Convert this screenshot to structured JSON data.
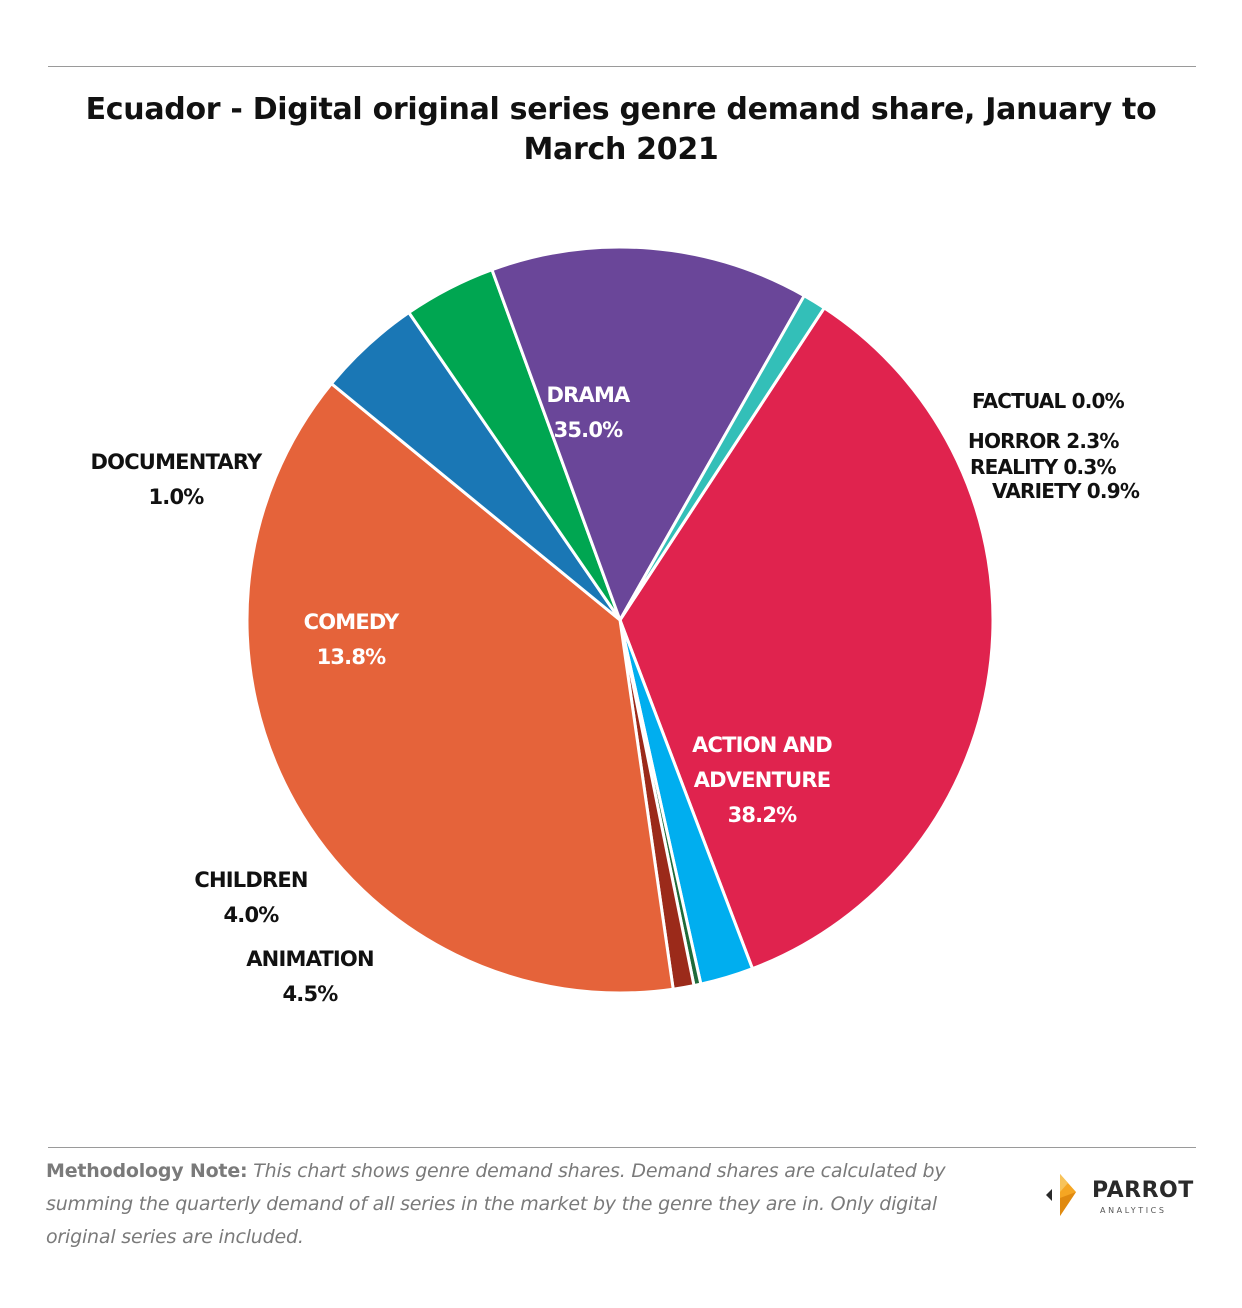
{
  "title": "Ecuador - Digital original series genre demand share, January to March 2021",
  "chart_data": {
    "type": "pie",
    "title": "Ecuador - Digital original series genre demand share, January to March 2021",
    "slices": [
      {
        "label": "DRAMA",
        "value": 35.0,
        "display": "35.0%",
        "color": "#e0234e"
      },
      {
        "label": "FACTUAL",
        "value": 0.0,
        "display": "0.0%",
        "color": "#3a3a3a"
      },
      {
        "label": "HORROR",
        "value": 2.3,
        "display": "2.3%",
        "color": "#00aeef"
      },
      {
        "label": "REALITY",
        "value": 0.3,
        "display": "0.3%",
        "color": "#1e6b3a"
      },
      {
        "label": "VARIETY",
        "value": 0.9,
        "display": "0.9%",
        "color": "#9b2a1a"
      },
      {
        "label": "ACTION AND ADVENTURE",
        "value": 38.2,
        "display": "38.2%",
        "color": "#e5633a"
      },
      {
        "label": "ANIMATION",
        "value": 4.5,
        "display": "4.5%",
        "color": "#1a77b5"
      },
      {
        "label": "CHILDREN",
        "value": 4.0,
        "display": "4.0%",
        "color": "#00a651"
      },
      {
        "label": "COMEDY",
        "value": 13.8,
        "display": "13.8%",
        "color": "#6a4699"
      },
      {
        "label": "DOCUMENTARY",
        "value": 1.0,
        "display": "1.0%",
        "color": "#33bfb8"
      }
    ]
  },
  "note": {
    "label": "Methodology Note:",
    "text": "This chart shows genre demand shares. Demand shares are calculated by summing the quarterly demand of all series in the market by the genre they are in. Only digital original series are included."
  },
  "logo": {
    "name": "PARROT",
    "sub": "ANALYTICS",
    "colors": {
      "primary": "#f5a623",
      "secondary": "#2a2a2a"
    }
  }
}
